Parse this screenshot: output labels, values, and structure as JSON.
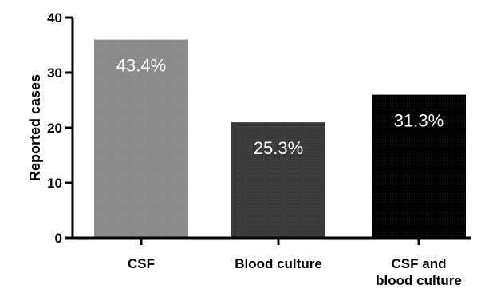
{
  "chart_data": {
    "type": "bar",
    "categories": [
      "CSF",
      "Blood culture",
      "CSF and blood culture"
    ],
    "category_display": [
      [
        "CSF"
      ],
      [
        "Blood culture"
      ],
      [
        "CSF and",
        "blood culture"
      ]
    ],
    "values": [
      36,
      21,
      26
    ],
    "data_labels": [
      "43.4%",
      "25.3%",
      "31.3%"
    ],
    "bar_colors": [
      "#8a8a8a",
      "#3a3a3a",
      "#000000"
    ],
    "label_color": "#ffffff",
    "title": "",
    "xlabel": "",
    "ylabel": "Reported cases",
    "ylim": [
      0,
      40
    ],
    "yticks": [
      0,
      10,
      20,
      30,
      40
    ],
    "grid": false,
    "legend": "none"
  }
}
